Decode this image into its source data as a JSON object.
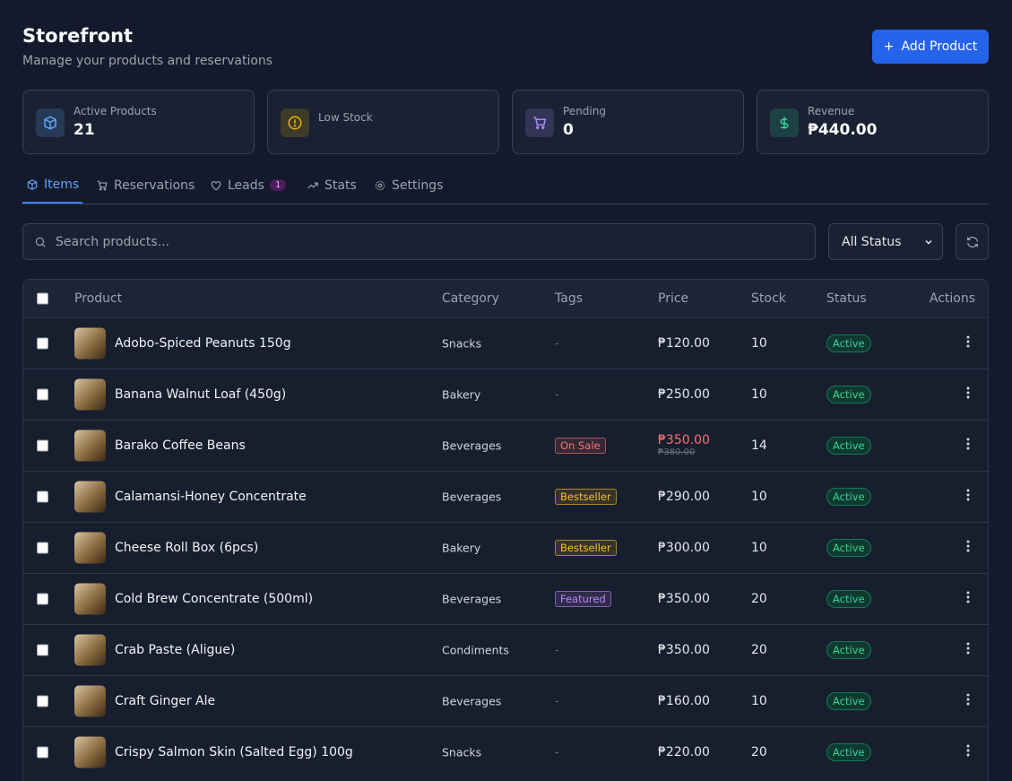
{
  "header": {
    "title": "Storefront",
    "subtitle": "Manage your products and reservations",
    "add_button": "Add Product"
  },
  "stats": [
    {
      "label": "Active Products",
      "value": 21,
      "color": "#60a5fa"
    },
    {
      "label": "Low Stock",
      "color": "#eab308"
    },
    {
      "label": "Pending",
      "value": 0,
      "color": "#a78bfa"
    },
    {
      "label": "Revenue",
      "value": "₱440.00",
      "color": "#34d399"
    }
  ],
  "tabs": [
    {
      "label": "Items"
    },
    {
      "label": "Reservations"
    },
    {
      "label": "Leads",
      "badge": 1
    },
    {
      "label": "Stats"
    },
    {
      "label": "Settings"
    }
  ],
  "search_placeholder": "Search products...",
  "status_filter": "All Status",
  "table": {
    "columns": [
      "Product",
      "Category",
      "Tags",
      "Price",
      "Stock",
      "Status",
      "Actions"
    ],
    "rows": [
      {
        "product": "Adobo-Spiced Peanuts 150g",
        "category": "Snacks",
        "tag": "-",
        "price": "₱120.00",
        "stock": 10,
        "status": "Active"
      },
      {
        "product": "Banana Walnut Loaf (450g)",
        "category": "Bakery",
        "tag": "-",
        "price": "₱250.00",
        "stock": 10,
        "status": "Active"
      },
      {
        "product": "Barako Coffee Beans",
        "category": "Beverages",
        "tag": "On Sale",
        "tag_color": "#f87171",
        "price": "₱350.00",
        "old_price": "₱380.00",
        "stock": 14,
        "status": "Active"
      },
      {
        "product": "Calamansi-Honey Concentrate",
        "category": "Beverages",
        "tag": "Bestseller",
        "tag_color": "#fbbf24",
        "price": "₱290.00",
        "stock": 10,
        "status": "Active"
      },
      {
        "product": "Cheese Roll Box (6pcs)",
        "category": "Bakery",
        "tag": "Bestseller",
        "tag_color": "#fbbf24",
        "price": "₱300.00",
        "stock": 10,
        "status": "Active"
      },
      {
        "product": "Cold Brew Concentrate (500ml)",
        "category": "Beverages",
        "tag": "Featured",
        "tag_color": "#c084fc",
        "price": "₱350.00",
        "stock": 20,
        "status": "Active"
      },
      {
        "product": "Crab Paste (Aligue)",
        "category": "Condiments",
        "tag": "-",
        "price": "₱350.00",
        "stock": 20,
        "status": "Active"
      },
      {
        "product": "Craft Ginger Ale",
        "category": "Beverages",
        "tag": "-",
        "price": "₱160.00",
        "stock": 10,
        "status": "Active"
      },
      {
        "product": "Crispy Salmon Skin (Salted Egg) 100g",
        "category": "Snacks",
        "tag": "-",
        "price": "₱220.00",
        "stock": 20,
        "status": "Active"
      }
    ]
  }
}
